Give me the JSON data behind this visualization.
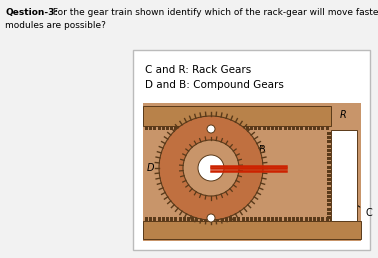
{
  "title_bold": "Qestion-3:",
  "title_rest": " For the gear train shown identify which of the rack-gear will move faster (Gear-C OR Gear-R) and how many",
  "title_line2": "modules are possible?",
  "legend_line1": "C and R: Rack Gears",
  "legend_line2": "D and B: Compound Gears",
  "label_R": "R",
  "label_B": "B",
  "label_C": "C",
  "label_D": "D",
  "bg_color": "#f2f2f2",
  "box_bg": "#ffffff",
  "gear_bg": "#c8956a",
  "rack_color": "#b8824a",
  "rack_border": "#5a3a1a",
  "gear_d_color": "#c07040",
  "gear_b_color": "#c8956a",
  "axle_color": "#cc2200",
  "teeth_color": "#5a3a1a",
  "white": "#ffffff",
  "pin_color": "#ffffff"
}
